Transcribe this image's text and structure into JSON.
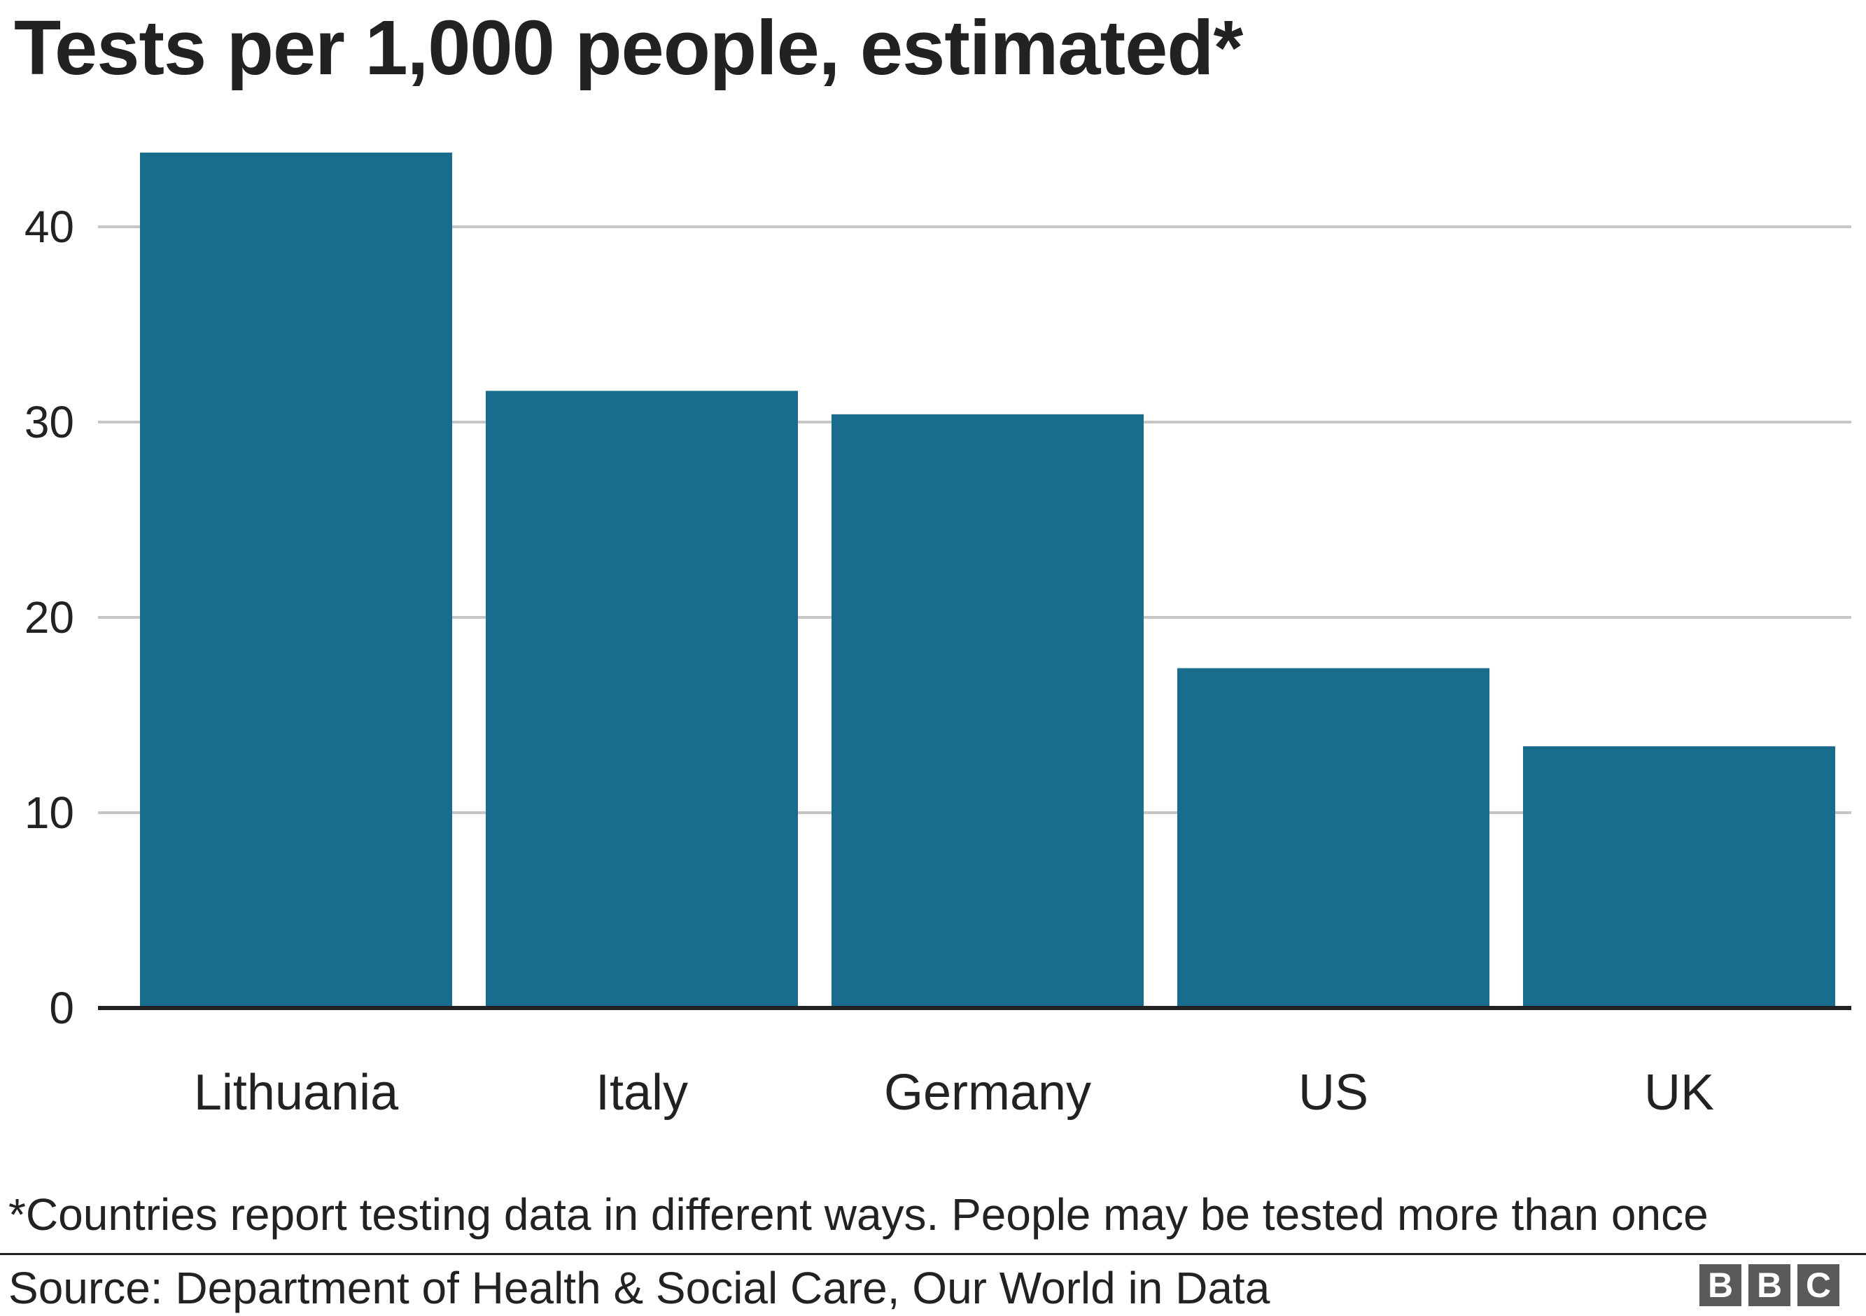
{
  "chart_data": {
    "type": "bar",
    "title": "Tests per 1,000 people, estimated*",
    "categories": [
      "Lithuania",
      "Italy",
      "Germany",
      "US",
      "UK"
    ],
    "values": [
      43.8,
      31.6,
      30.4,
      17.4,
      13.4
    ],
    "y_ticks": [
      0,
      10,
      20,
      30,
      40
    ],
    "ylim": [
      0,
      45
    ],
    "grid": true,
    "bar_color": "#186d8f",
    "grid_color": "#c6c6c6",
    "axis_color": "#222222"
  },
  "footnote": "*Countries report testing data in different ways. People may be tested more than once",
  "source": "Source: Department of Health & Social Care, Our World in Data",
  "logo": {
    "letters": [
      "B",
      "B",
      "C"
    ]
  }
}
